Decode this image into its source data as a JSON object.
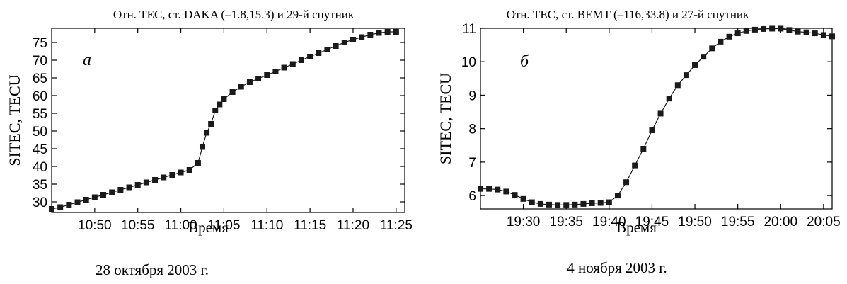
{
  "chart_data": [
    {
      "type": "line",
      "panel_label": "а",
      "title": "Отн. TEC, ст. DAKA (–1.8,15.3) и 29-й спутник",
      "xlabel": "Время",
      "ylabel": "SITEC,  TECU",
      "caption": "28 октября 2003 г.",
      "x_unit": "minutes",
      "xlim": [
        10.75,
        11.42
      ],
      "xlim_minutes": [
        645,
        686
      ],
      "ylim": [
        27,
        79
      ],
      "xticks": [
        650,
        655,
        660,
        665,
        670,
        675,
        680,
        685
      ],
      "xtick_labels": [
        "10:50",
        "10:55",
        "11:00",
        "11:05",
        "11:10",
        "11:15",
        "11:20",
        "11:25"
      ],
      "yticks": [
        30,
        35,
        40,
        45,
        50,
        55,
        60,
        65,
        70,
        75
      ],
      "ytick_labels": [
        "30",
        "35",
        "40",
        "45",
        "50",
        "55",
        "60",
        "65",
        "70",
        "75"
      ],
      "series": [
        {
          "x": [
            "10:45",
            "10:46",
            "10:47",
            "10:48",
            "10:49",
            "10:50",
            "10:51",
            "10:52",
            "10:53",
            "10:54",
            "10:55",
            "10:56",
            "10:57",
            "10:58",
            "10:59",
            "11:00",
            "11:01",
            "11:02",
            "11:02:30",
            "11:03",
            "11:03:30",
            "11:04",
            "11:04:30",
            "11:05",
            "11:06",
            "11:07",
            "11:08",
            "11:09",
            "11:10",
            "11:11",
            "11:12",
            "11:13",
            "11:14",
            "11:15",
            "11:16",
            "11:17",
            "11:18",
            "11:19",
            "11:20",
            "11:21",
            "11:22",
            "11:23",
            "11:24",
            "11:25"
          ],
          "y": [
            28,
            28.5,
            29.2,
            29.9,
            30.6,
            31.3,
            32,
            32.7,
            33.4,
            34.1,
            34.8,
            35.5,
            36.2,
            36.9,
            37.6,
            38.3,
            39,
            41,
            45.5,
            49.5,
            52,
            55.8,
            57.5,
            59,
            61,
            62.5,
            63.8,
            64.8,
            65.8,
            66.8,
            67.9,
            68.9,
            70,
            71,
            72,
            73,
            74,
            75,
            75.8,
            76.5,
            77.2,
            77.7,
            78,
            78
          ]
        }
      ]
    },
    {
      "type": "line",
      "panel_label": "б",
      "title": "Отн. TEC, ст. BEMT (–116,33.8) и 27-й спутник",
      "xlabel": "Время",
      "ylabel": "SITEC,  TECU",
      "caption": "4 ноября 2003 г.",
      "x_unit": "minutes",
      "xlim_minutes": [
        1165,
        1206
      ],
      "ylim": [
        5.6,
        11.0
      ],
      "xticks": [
        1170,
        1175,
        1180,
        1185,
        1190,
        1195,
        1200,
        1205
      ],
      "xtick_labels": [
        "19:30",
        "19:35",
        "19:40",
        "19:45",
        "19:50",
        "19:55",
        "20:00",
        "20:05"
      ],
      "yticks": [
        6,
        7,
        8,
        9,
        10,
        11
      ],
      "ytick_labels": [
        "6",
        "7",
        "8",
        "9",
        "10",
        "11"
      ],
      "series": [
        {
          "x": [
            "19:25",
            "19:26",
            "19:27",
            "19:28",
            "19:29",
            "19:30",
            "19:31",
            "19:32",
            "19:33",
            "19:34",
            "19:35",
            "19:36",
            "19:37",
            "19:38",
            "19:39",
            "19:40",
            "19:41",
            "19:42",
            "19:43",
            "19:44",
            "19:45",
            "19:46",
            "19:47",
            "19:48",
            "19:49",
            "19:50",
            "19:51",
            "19:52",
            "19:53",
            "19:54",
            "19:55",
            "19:56",
            "19:57",
            "19:58",
            "19:59",
            "20:00",
            "20:01",
            "20:02",
            "20:03",
            "20:04",
            "20:05",
            "20:06"
          ],
          "y": [
            6.2,
            6.2,
            6.18,
            6.12,
            6.02,
            5.9,
            5.8,
            5.75,
            5.73,
            5.72,
            5.72,
            5.73,
            5.75,
            5.77,
            5.78,
            5.8,
            6.0,
            6.4,
            6.9,
            7.4,
            7.95,
            8.45,
            8.9,
            9.3,
            9.6,
            9.9,
            10.15,
            10.4,
            10.6,
            10.75,
            10.85,
            10.92,
            10.96,
            10.98,
            10.99,
            10.99,
            10.95,
            10.9,
            10.88,
            10.85,
            10.8,
            10.76
          ]
        }
      ]
    }
  ]
}
